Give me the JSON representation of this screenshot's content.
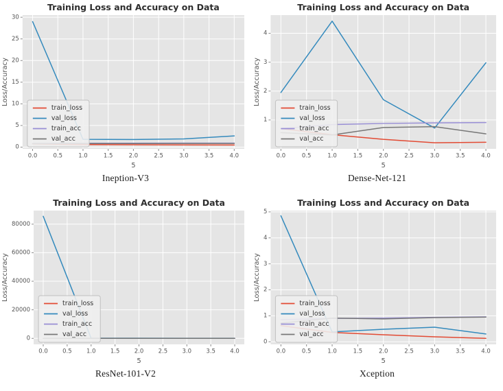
{
  "palette": {
    "red": "#E24A33",
    "blue": "#348ABD",
    "purple": "#988ED5",
    "gray": "#777777",
    "plot_bg": "#E5E5E5",
    "grid": "#FFFFFF",
    "tick_color": "#555555",
    "title_color": "#2E2E2E",
    "legend_bg": "#EFEFEF",
    "legend_border": "#BBBBBB",
    "legend_text": "#333333"
  },
  "chart_data": [
    {
      "type": "line",
      "title": "Training Loss and Accuracy on Data",
      "xlabel": "5",
      "ylabel": "Loss/Accuracy",
      "caption": "Ineption-V3",
      "grid": true,
      "legend_position": "lower left",
      "x": [
        0,
        1,
        2,
        3,
        4
      ],
      "xlim": [
        -0.2,
        4.2
      ],
      "ylim": [
        -0.4,
        30.5
      ],
      "xticks": [
        0.0,
        0.5,
        1.0,
        1.5,
        2.0,
        2.5,
        3.0,
        3.5,
        4.0
      ],
      "yticks": [
        0,
        5,
        10,
        15,
        20,
        25,
        30
      ],
      "series": [
        {
          "name": "train_loss",
          "color_key": "red",
          "values": [
            0.75,
            0.6,
            0.55,
            0.52,
            0.5
          ]
        },
        {
          "name": "val_loss",
          "color_key": "blue",
          "values": [
            29.0,
            1.8,
            1.75,
            1.9,
            2.6
          ]
        },
        {
          "name": "train_acc",
          "color_key": "purple",
          "values": [
            0.86,
            0.88,
            0.9,
            0.92,
            0.93
          ]
        },
        {
          "name": "val_acc",
          "color_key": "gray",
          "values": [
            0.8,
            0.82,
            0.83,
            0.84,
            0.85
          ]
        }
      ]
    },
    {
      "type": "line",
      "title": "Training Loss and Accuracy on Data",
      "xlabel": "5",
      "ylabel": "Loss/Accuracy",
      "caption": "Dense-Net-121",
      "grid": true,
      "legend_position": "lower left",
      "x": [
        0,
        1,
        2,
        3,
        4
      ],
      "xlim": [
        -0.2,
        4.2
      ],
      "ylim": [
        0,
        4.63
      ],
      "xticks": [
        0.0,
        0.5,
        1.0,
        1.5,
        2.0,
        2.5,
        3.0,
        3.5,
        4.0
      ],
      "yticks": [
        1,
        2,
        3,
        4
      ],
      "series": [
        {
          "name": "train_loss",
          "color_key": "red",
          "values": [
            0.7,
            0.49,
            0.33,
            0.21,
            0.23
          ]
        },
        {
          "name": "val_loss",
          "color_key": "blue",
          "values": [
            1.95,
            4.42,
            1.7,
            0.72,
            2.98
          ]
        },
        {
          "name": "train_acc",
          "color_key": "purple",
          "values": [
            0.7,
            0.84,
            0.88,
            0.9,
            0.91
          ]
        },
        {
          "name": "val_acc",
          "color_key": "gray",
          "values": [
            0.56,
            0.48,
            0.74,
            0.77,
            0.52
          ]
        }
      ]
    },
    {
      "type": "line",
      "title": "Training Loss and Accuracy on Data",
      "xlabel": "5",
      "ylabel": "Loss/Accuracy",
      "caption": "ResNet-101-V2",
      "grid": true,
      "legend_position": "lower left",
      "x": [
        0,
        1,
        2,
        3,
        4
      ],
      "xlim": [
        -0.2,
        4.2
      ],
      "ylim": [
        -4200,
        89500
      ],
      "xticks": [
        0.0,
        0.5,
        1.0,
        1.5,
        2.0,
        2.5,
        3.0,
        3.5,
        4.0
      ],
      "yticks": [
        0,
        20000,
        40000,
        60000,
        80000
      ],
      "series": [
        {
          "name": "train_loss",
          "color_key": "red",
          "values": [
            2,
            1,
            0.9,
            0.8,
            0.7
          ]
        },
        {
          "name": "val_loss",
          "color_key": "blue",
          "values": [
            85500,
            150,
            110,
            90,
            80
          ]
        },
        {
          "name": "train_acc",
          "color_key": "purple",
          "values": [
            0.78,
            0.8,
            0.82,
            0.83,
            0.84
          ]
        },
        {
          "name": "val_acc",
          "color_key": "gray",
          "values": [
            0.72,
            0.76,
            0.78,
            0.8,
            0.81
          ]
        }
      ]
    },
    {
      "type": "line",
      "title": "Training Loss and Accuracy on Data",
      "xlabel": "5",
      "ylabel": "Loss/Accuracy",
      "caption": "Xception",
      "grid": true,
      "legend_position": "lower left",
      "x": [
        0,
        1,
        2,
        3,
        4
      ],
      "xlim": [
        -0.2,
        4.2
      ],
      "ylim": [
        -0.1,
        5.05
      ],
      "xticks": [
        0.0,
        0.5,
        1.0,
        1.5,
        2.0,
        2.5,
        3.0,
        3.5,
        4.0
      ],
      "yticks": [
        0,
        1,
        2,
        3,
        4,
        5
      ],
      "series": [
        {
          "name": "train_loss",
          "color_key": "red",
          "values": [
            0.62,
            0.36,
            0.27,
            0.19,
            0.13
          ]
        },
        {
          "name": "val_loss",
          "color_key": "blue",
          "values": [
            4.85,
            0.38,
            0.48,
            0.56,
            0.3
          ]
        },
        {
          "name": "train_acc",
          "color_key": "purple",
          "values": [
            0.85,
            0.9,
            0.91,
            0.94,
            0.96
          ]
        },
        {
          "name": "val_acc",
          "color_key": "gray",
          "values": [
            0.72,
            0.91,
            0.88,
            0.93,
            0.95
          ]
        }
      ]
    }
  ]
}
